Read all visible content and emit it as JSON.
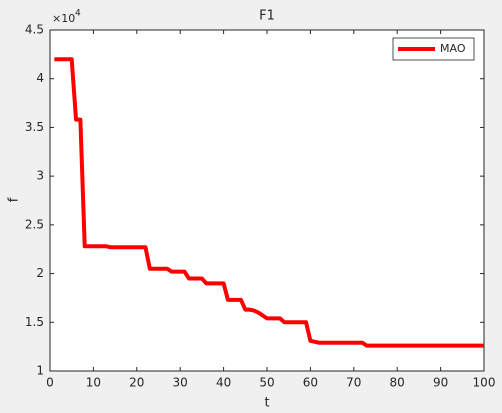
{
  "chart_data": {
    "type": "line",
    "title": "F1",
    "x_label": "t",
    "y_label": "f",
    "y_multiplier": {
      "base": "×10",
      "exponent": "4"
    },
    "x": [
      1,
      2,
      3,
      4,
      5,
      6,
      7,
      8,
      9,
      10,
      11,
      12,
      13,
      14,
      15,
      16,
      17,
      18,
      19,
      20,
      21,
      22,
      23,
      24,
      25,
      26,
      27,
      28,
      29,
      30,
      31,
      32,
      33,
      34,
      35,
      36,
      37,
      38,
      39,
      40,
      41,
      42,
      43,
      44,
      45,
      46,
      47,
      48,
      49,
      50,
      51,
      52,
      53,
      54,
      55,
      56,
      57,
      58,
      59,
      60,
      61,
      62,
      63,
      64,
      65,
      66,
      67,
      68,
      69,
      70,
      71,
      72,
      73,
      74,
      75,
      76,
      77,
      78,
      79,
      80,
      81,
      82,
      83,
      84,
      85,
      86,
      87,
      88,
      89,
      90,
      91,
      92,
      93,
      94,
      95,
      96,
      97,
      98,
      99,
      100
    ],
    "series": [
      {
        "name": "MAO",
        "color": "#ff0000",
        "values": [
          4.2,
          4.2,
          4.2,
          4.2,
          4.2,
          3.58,
          3.58,
          2.28,
          2.28,
          2.28,
          2.28,
          2.28,
          2.28,
          2.27,
          2.27,
          2.27,
          2.27,
          2.27,
          2.27,
          2.27,
          2.27,
          2.27,
          2.05,
          2.05,
          2.05,
          2.05,
          2.05,
          2.02,
          2.02,
          2.02,
          2.02,
          1.95,
          1.95,
          1.95,
          1.95,
          1.9,
          1.9,
          1.9,
          1.9,
          1.9,
          1.73,
          1.73,
          1.73,
          1.73,
          1.63,
          1.63,
          1.62,
          1.6,
          1.57,
          1.54,
          1.54,
          1.54,
          1.54,
          1.5,
          1.5,
          1.5,
          1.5,
          1.5,
          1.5,
          1.31,
          1.3,
          1.29,
          1.29,
          1.29,
          1.29,
          1.29,
          1.29,
          1.29,
          1.29,
          1.29,
          1.29,
          1.29,
          1.26,
          1.26,
          1.26,
          1.26,
          1.26,
          1.26,
          1.26,
          1.26,
          1.26,
          1.26,
          1.26,
          1.26,
          1.26,
          1.26,
          1.26,
          1.26,
          1.26,
          1.26,
          1.26,
          1.26,
          1.26,
          1.26,
          1.26,
          1.26,
          1.26,
          1.26,
          1.26,
          1.26
        ]
      }
    ],
    "xlim": [
      0,
      100
    ],
    "xticks": [
      0,
      10,
      20,
      30,
      40,
      50,
      60,
      70,
      80,
      90,
      100
    ],
    "ylim": [
      1,
      4.5
    ],
    "yticks": [
      1,
      1.5,
      2,
      2.5,
      3,
      3.5,
      4,
      4.5
    ],
    "legend": "top-right"
  }
}
